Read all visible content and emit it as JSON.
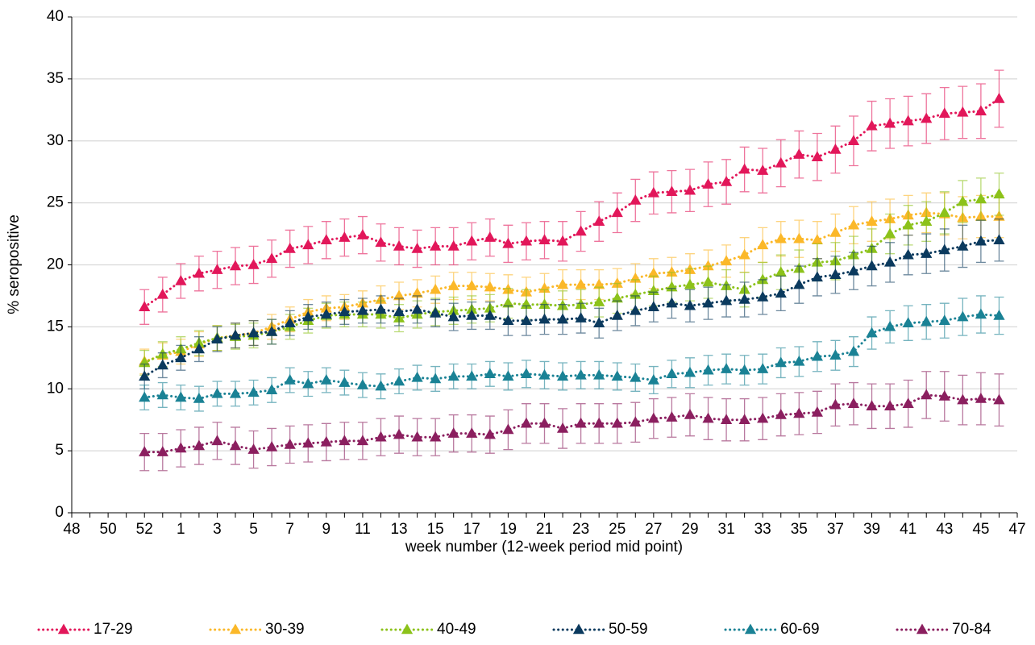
{
  "chart_data": {
    "type": "line",
    "y_label": "% seropositive",
    "x_label": "week number (12-week period mid point)",
    "categories": [
      "48",
      null,
      "50",
      null,
      "52",
      null,
      "1",
      null,
      "3",
      null,
      "5",
      null,
      "7",
      null,
      "9",
      null,
      "11",
      null,
      "13",
      null,
      "15",
      null,
      "17",
      null,
      "19",
      null,
      "21",
      null,
      "23",
      null,
      "25",
      null,
      "27",
      null,
      "29",
      null,
      "31",
      null,
      "33",
      null,
      "35",
      null,
      "37",
      null,
      "39",
      null,
      "41",
      null,
      "43",
      null,
      "45",
      null,
      "47"
    ],
    "ylim": [
      0,
      40
    ],
    "yticks": [
      0,
      5,
      10,
      15,
      20,
      25,
      30,
      35,
      40
    ],
    "grid": true,
    "legend": "bottom",
    "series": [
      {
        "name": "17-29",
        "color": "#e2175a",
        "values": [
          null,
          null,
          null,
          null,
          16.6,
          17.6,
          18.7,
          19.3,
          19.6,
          19.9,
          20.0,
          20.5,
          21.3,
          21.6,
          22.0,
          22.2,
          22.4,
          21.8,
          21.5,
          21.3,
          21.5,
          21.5,
          21.9,
          22.2,
          21.7,
          21.9,
          22.0,
          21.9,
          22.7,
          23.5,
          24.2,
          25.2,
          25.8,
          25.9,
          26.0,
          26.5,
          26.7,
          27.7,
          27.6,
          28.2,
          28.9,
          28.7,
          29.3,
          30.0,
          31.2,
          31.4,
          31.6,
          31.8,
          32.2,
          32.3,
          32.4,
          33.4,
          null
        ],
        "errors": [
          null,
          null,
          null,
          null,
          1.4,
          1.4,
          1.4,
          1.4,
          1.5,
          1.5,
          1.5,
          1.5,
          1.5,
          1.5,
          1.5,
          1.5,
          1.5,
          1.5,
          1.5,
          1.5,
          1.5,
          1.5,
          1.5,
          1.5,
          1.5,
          1.5,
          1.5,
          1.6,
          1.6,
          1.6,
          1.6,
          1.7,
          1.7,
          1.7,
          1.7,
          1.8,
          1.8,
          1.8,
          1.8,
          1.9,
          1.9,
          1.9,
          1.9,
          2.0,
          2.0,
          2.0,
          2.0,
          2.0,
          2.1,
          2.1,
          2.2,
          2.3,
          null
        ]
      },
      {
        "name": "30-39",
        "color": "#fbb829",
        "values": [
          null,
          null,
          null,
          null,
          12.2,
          12.7,
          13.0,
          13.6,
          14.1,
          14.3,
          14.5,
          15.0,
          15.6,
          16.2,
          16.5,
          16.6,
          16.9,
          17.2,
          17.5,
          17.7,
          18.0,
          18.3,
          18.3,
          18.2,
          18.0,
          17.8,
          18.1,
          18.4,
          18.4,
          18.4,
          18.5,
          18.9,
          19.3,
          19.4,
          19.6,
          19.9,
          20.3,
          20.8,
          21.6,
          22.1,
          22.1,
          22.0,
          22.6,
          23.2,
          23.5,
          23.7,
          24.0,
          24.2,
          24.1,
          23.8,
          23.9,
          23.9,
          null
        ],
        "errors": [
          null,
          null,
          null,
          null,
          1.0,
          1.0,
          1.0,
          1.0,
          1.0,
          1.0,
          1.0,
          1.0,
          1.0,
          1.0,
          1.0,
          1.0,
          1.0,
          1.1,
          1.1,
          1.1,
          1.1,
          1.1,
          1.1,
          1.1,
          1.2,
          1.2,
          1.2,
          1.2,
          1.2,
          1.2,
          1.2,
          1.2,
          1.2,
          1.2,
          1.3,
          1.3,
          1.3,
          1.4,
          1.4,
          1.4,
          1.5,
          1.5,
          1.5,
          1.5,
          1.6,
          1.6,
          1.6,
          1.6,
          1.7,
          1.7,
          1.7,
          1.7,
          null
        ]
      },
      {
        "name": "40-49",
        "color": "#8cc21a",
        "values": [
          null,
          null,
          null,
          null,
          12.1,
          12.8,
          13.2,
          13.7,
          14.1,
          14.2,
          14.3,
          14.6,
          15.0,
          15.5,
          15.9,
          16.0,
          16.0,
          16.0,
          15.7,
          16.0,
          16.2,
          16.3,
          16.4,
          16.5,
          16.9,
          16.8,
          16.8,
          16.7,
          16.8,
          17.0,
          17.3,
          17.6,
          17.9,
          18.2,
          18.4,
          18.6,
          18.3,
          18.0,
          18.8,
          19.4,
          19.7,
          20.2,
          20.3,
          20.8,
          21.3,
          22.5,
          23.2,
          23.5,
          24.2,
          25.1,
          25.3,
          25.7,
          null
        ],
        "errors": [
          null,
          null,
          null,
          null,
          1.0,
          1.0,
          1.0,
          1.0,
          1.0,
          1.0,
          1.0,
          1.0,
          1.0,
          1.0,
          1.0,
          1.0,
          1.0,
          1.1,
          1.1,
          1.1,
          1.1,
          1.1,
          1.1,
          1.1,
          1.2,
          1.2,
          1.2,
          1.2,
          1.2,
          1.2,
          1.2,
          1.2,
          1.2,
          1.2,
          1.3,
          1.3,
          1.3,
          1.4,
          1.4,
          1.4,
          1.5,
          1.5,
          1.5,
          1.5,
          1.6,
          1.6,
          1.6,
          1.6,
          1.7,
          1.7,
          1.7,
          1.7,
          null
        ]
      },
      {
        "name": "50-59",
        "color": "#0b3a5e",
        "values": [
          null,
          null,
          null,
          null,
          11.0,
          11.9,
          12.5,
          13.2,
          14.0,
          14.3,
          14.5,
          14.6,
          15.3,
          15.8,
          16.0,
          16.2,
          16.3,
          16.4,
          16.2,
          16.4,
          16.1,
          15.8,
          15.9,
          15.9,
          15.5,
          15.5,
          15.6,
          15.6,
          15.7,
          15.3,
          15.9,
          16.3,
          16.6,
          16.9,
          16.7,
          16.9,
          17.1,
          17.2,
          17.4,
          17.7,
          18.4,
          19.0,
          19.2,
          19.5,
          19.9,
          20.2,
          20.8,
          20.9,
          21.2,
          21.5,
          21.9,
          22.0,
          null
        ],
        "errors": [
          null,
          null,
          null,
          null,
          1.0,
          1.0,
          1.0,
          1.0,
          1.0,
          1.0,
          1.0,
          1.0,
          1.0,
          1.0,
          1.0,
          1.0,
          1.0,
          1.1,
          1.1,
          1.1,
          1.1,
          1.1,
          1.1,
          1.1,
          1.2,
          1.2,
          1.2,
          1.2,
          1.2,
          1.2,
          1.2,
          1.2,
          1.2,
          1.2,
          1.3,
          1.3,
          1.3,
          1.4,
          1.4,
          1.4,
          1.5,
          1.5,
          1.5,
          1.5,
          1.6,
          1.6,
          1.6,
          1.6,
          1.7,
          1.7,
          1.7,
          1.7,
          null
        ]
      },
      {
        "name": "60-69",
        "color": "#1a8295",
        "values": [
          null,
          null,
          null,
          null,
          9.3,
          9.5,
          9.3,
          9.2,
          9.6,
          9.6,
          9.7,
          9.9,
          10.7,
          10.4,
          10.7,
          10.5,
          10.3,
          10.2,
          10.6,
          10.9,
          10.8,
          11.0,
          11.0,
          11.2,
          11.0,
          11.2,
          11.1,
          11.0,
          11.1,
          11.1,
          11.0,
          10.9,
          10.7,
          11.2,
          11.3,
          11.5,
          11.6,
          11.5,
          11.6,
          12.1,
          12.2,
          12.6,
          12.7,
          13.0,
          14.5,
          15.0,
          15.3,
          15.4,
          15.5,
          15.8,
          16.0,
          15.9,
          null
        ],
        "errors": [
          null,
          null,
          null,
          null,
          1.0,
          1.0,
          1.0,
          1.0,
          1.0,
          1.0,
          1.0,
          1.0,
          1.0,
          1.0,
          1.0,
          1.0,
          1.0,
          1.0,
          1.0,
          1.0,
          1.0,
          1.0,
          1.0,
          1.0,
          1.1,
          1.1,
          1.1,
          1.1,
          1.1,
          1.1,
          1.1,
          1.1,
          1.1,
          1.1,
          1.2,
          1.2,
          1.2,
          1.2,
          1.2,
          1.2,
          1.2,
          1.2,
          1.2,
          1.2,
          1.3,
          1.3,
          1.4,
          1.4,
          1.4,
          1.5,
          1.5,
          1.5,
          null
        ]
      },
      {
        "name": "70-84",
        "color": "#8b1f5f",
        "values": [
          null,
          null,
          null,
          null,
          4.9,
          4.9,
          5.2,
          5.4,
          5.8,
          5.4,
          5.1,
          5.3,
          5.5,
          5.6,
          5.7,
          5.8,
          5.8,
          6.1,
          6.3,
          6.1,
          6.1,
          6.4,
          6.4,
          6.3,
          6.7,
          7.2,
          7.2,
          6.8,
          7.2,
          7.2,
          7.2,
          7.3,
          7.6,
          7.7,
          7.9,
          7.6,
          7.5,
          7.5,
          7.6,
          7.9,
          8.0,
          8.1,
          8.7,
          8.8,
          8.6,
          8.6,
          8.8,
          9.5,
          9.4,
          9.1,
          9.2,
          9.1,
          null
        ],
        "errors": [
          null,
          null,
          null,
          null,
          1.5,
          1.5,
          1.5,
          1.5,
          1.5,
          1.5,
          1.5,
          1.5,
          1.5,
          1.5,
          1.5,
          1.5,
          1.5,
          1.5,
          1.5,
          1.5,
          1.5,
          1.5,
          1.5,
          1.5,
          1.6,
          1.6,
          1.6,
          1.6,
          1.6,
          1.6,
          1.6,
          1.6,
          1.6,
          1.6,
          1.7,
          1.7,
          1.7,
          1.7,
          1.7,
          1.7,
          1.7,
          1.7,
          1.7,
          1.7,
          1.8,
          1.8,
          1.9,
          1.9,
          2.0,
          2.0,
          2.1,
          2.1,
          null
        ]
      }
    ]
  }
}
